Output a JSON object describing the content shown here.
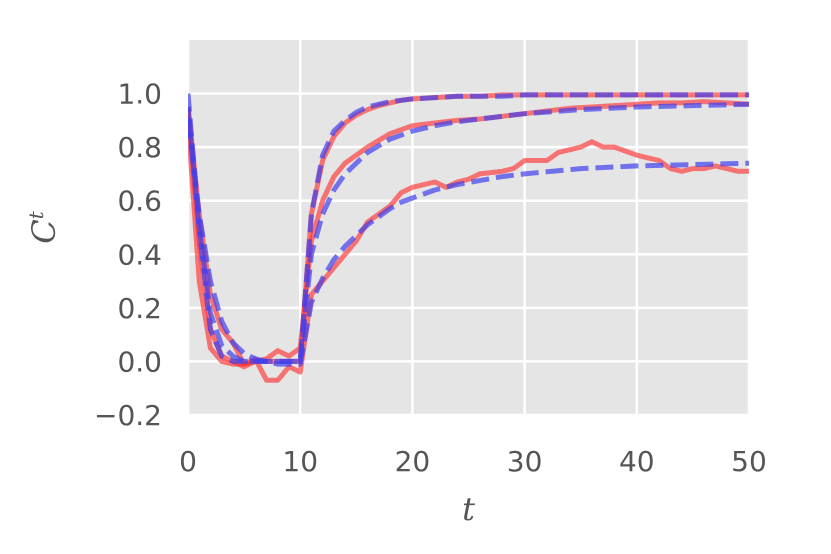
{
  "chart_data": {
    "type": "line",
    "xlabel": "t",
    "ylabel": "C",
    "ylabel_superscript": "t",
    "xlim": [
      0,
      50
    ],
    "ylim": [
      -0.2,
      1.2
    ],
    "xticks": [
      0,
      10,
      20,
      30,
      40,
      50
    ],
    "xtick_labels": [
      "0",
      "10",
      "20",
      "30",
      "40",
      "50"
    ],
    "yticks": [
      -0.2,
      0.0,
      0.2,
      0.4,
      0.6,
      0.8,
      1.0
    ],
    "ytick_labels": [
      "−0.2",
      "0.0",
      "0.2",
      "0.4",
      "0.6",
      "0.8",
      "1.0"
    ],
    "grid": true,
    "background": "#e5e5e5",
    "series": [
      {
        "style": "solid",
        "color": "#ff3333",
        "x": [
          0,
          1,
          2,
          3,
          4,
          5,
          6,
          7,
          8,
          9,
          10,
          11,
          12,
          13,
          14,
          15,
          16,
          17,
          18,
          19,
          20,
          22,
          24,
          26,
          28,
          30,
          35,
          40,
          45,
          50
        ],
        "y": [
          0.9,
          0.3,
          0.05,
          0.0,
          -0.01,
          -0.01,
          0.0,
          0.0,
          0.0,
          0.0,
          0.0,
          0.55,
          0.75,
          0.84,
          0.89,
          0.92,
          0.94,
          0.955,
          0.965,
          0.975,
          0.98,
          0.985,
          0.99,
          0.99,
          0.995,
          0.995,
          0.995,
          0.995,
          0.995,
          0.995
        ]
      },
      {
        "style": "solid",
        "color": "#ff3333",
        "x": [
          0,
          1,
          2,
          3,
          4,
          5,
          6,
          7,
          8,
          9,
          10,
          11,
          12,
          13,
          14,
          16,
          18,
          20,
          22,
          24,
          26,
          28,
          30,
          32,
          34,
          36,
          38,
          40,
          42,
          44,
          46,
          48,
          50
        ],
        "y": [
          0.95,
          0.45,
          0.12,
          0.02,
          0.0,
          -0.02,
          0.0,
          0.01,
          0.04,
          0.02,
          0.05,
          0.45,
          0.6,
          0.69,
          0.74,
          0.8,
          0.85,
          0.88,
          0.89,
          0.9,
          0.905,
          0.915,
          0.925,
          0.935,
          0.945,
          0.95,
          0.955,
          0.96,
          0.965,
          0.965,
          0.97,
          0.965,
          0.96
        ]
      },
      {
        "style": "solid",
        "color": "#ff3333",
        "x": [
          0,
          1,
          2,
          3,
          4,
          5,
          6,
          7,
          8,
          9,
          10,
          11,
          12,
          13,
          14,
          15,
          16,
          17,
          18,
          19,
          20,
          22,
          23,
          24,
          25,
          26,
          28,
          29,
          30,
          32,
          33,
          34,
          35,
          36,
          37,
          38,
          40,
          41,
          42,
          43,
          44,
          45,
          46,
          47,
          48,
          49,
          50
        ],
        "y": [
          0.95,
          0.55,
          0.25,
          0.12,
          0.07,
          -0.01,
          0.01,
          -0.07,
          -0.07,
          -0.02,
          -0.04,
          0.25,
          0.3,
          0.35,
          0.4,
          0.45,
          0.52,
          0.55,
          0.58,
          0.63,
          0.65,
          0.67,
          0.65,
          0.67,
          0.68,
          0.7,
          0.71,
          0.72,
          0.75,
          0.75,
          0.78,
          0.79,
          0.8,
          0.82,
          0.8,
          0.8,
          0.77,
          0.76,
          0.75,
          0.72,
          0.71,
          0.72,
          0.72,
          0.73,
          0.72,
          0.71,
          0.71
        ]
      },
      {
        "style": "dashed",
        "color": "#4040ee",
        "x": [
          0,
          1,
          2,
          3,
          4,
          5,
          6,
          7,
          8,
          9,
          10,
          11,
          12,
          13,
          14,
          15,
          16,
          17,
          18,
          19,
          20,
          22,
          24,
          26,
          28,
          30,
          35,
          40,
          45,
          50
        ],
        "y": [
          1.0,
          0.5,
          0.12,
          0.02,
          0.0,
          0.0,
          0.0,
          0.0,
          0.0,
          0.0,
          0.0,
          0.55,
          0.77,
          0.86,
          0.9,
          0.93,
          0.95,
          0.96,
          0.97,
          0.975,
          0.98,
          0.985,
          0.99,
          0.99,
          0.99,
          0.995,
          0.995,
          0.995,
          0.995,
          0.995
        ]
      },
      {
        "style": "dashed",
        "color": "#4040ee",
        "x": [
          0,
          1,
          2,
          3,
          4,
          5,
          6,
          7,
          8,
          9,
          10,
          11,
          12,
          13,
          14,
          16,
          18,
          20,
          22,
          24,
          26,
          28,
          30,
          35,
          40,
          45,
          50
        ],
        "y": [
          0.95,
          0.5,
          0.18,
          0.06,
          0.02,
          0.0,
          0.0,
          0.0,
          0.0,
          0.0,
          0.0,
          0.4,
          0.55,
          0.64,
          0.7,
          0.78,
          0.83,
          0.86,
          0.88,
          0.895,
          0.905,
          0.915,
          0.925,
          0.94,
          0.95,
          0.955,
          0.96
        ]
      },
      {
        "style": "dashed",
        "color": "#4040ee",
        "x": [
          0,
          1,
          2,
          3,
          4,
          5,
          6,
          7,
          8,
          9,
          10,
          11,
          12,
          13,
          14,
          15,
          16,
          17,
          18,
          19,
          20,
          22,
          24,
          26,
          28,
          30,
          35,
          40,
          45,
          50
        ],
        "y": [
          0.9,
          0.55,
          0.3,
          0.15,
          0.07,
          0.03,
          0.01,
          0.0,
          -0.01,
          -0.01,
          -0.01,
          0.22,
          0.31,
          0.38,
          0.43,
          0.47,
          0.51,
          0.54,
          0.57,
          0.595,
          0.61,
          0.64,
          0.66,
          0.675,
          0.69,
          0.7,
          0.72,
          0.73,
          0.735,
          0.74
        ]
      }
    ]
  }
}
